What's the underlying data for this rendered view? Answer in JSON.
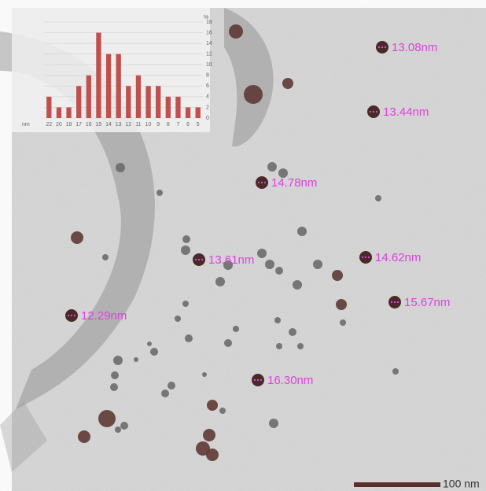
{
  "chart_data": {
    "type": "bar",
    "x_label": "nm",
    "y_label": "%",
    "categories": [
      "22",
      "20",
      "18",
      "17",
      "16",
      "15",
      "14",
      "13",
      "12",
      "11",
      "10",
      "9",
      "8",
      "7",
      "6",
      "5"
    ],
    "values": [
      4,
      2,
      2,
      6,
      8,
      16,
      12,
      12,
      6,
      8,
      6,
      6,
      4,
      4,
      2,
      2
    ],
    "color": "#c0504d",
    "ylim": [
      0,
      18
    ],
    "yticks": [
      0,
      2,
      4,
      6,
      8,
      10,
      12,
      14,
      16,
      18
    ],
    "grid": true
  },
  "annotations": [
    "13.08nm",
    "13.44nm",
    "14.78nm",
    "13.61nm",
    "14.62nm",
    "15.67nm",
    "12.29nm",
    "16.30nm"
  ],
  "scale_bar": "100 nm"
}
